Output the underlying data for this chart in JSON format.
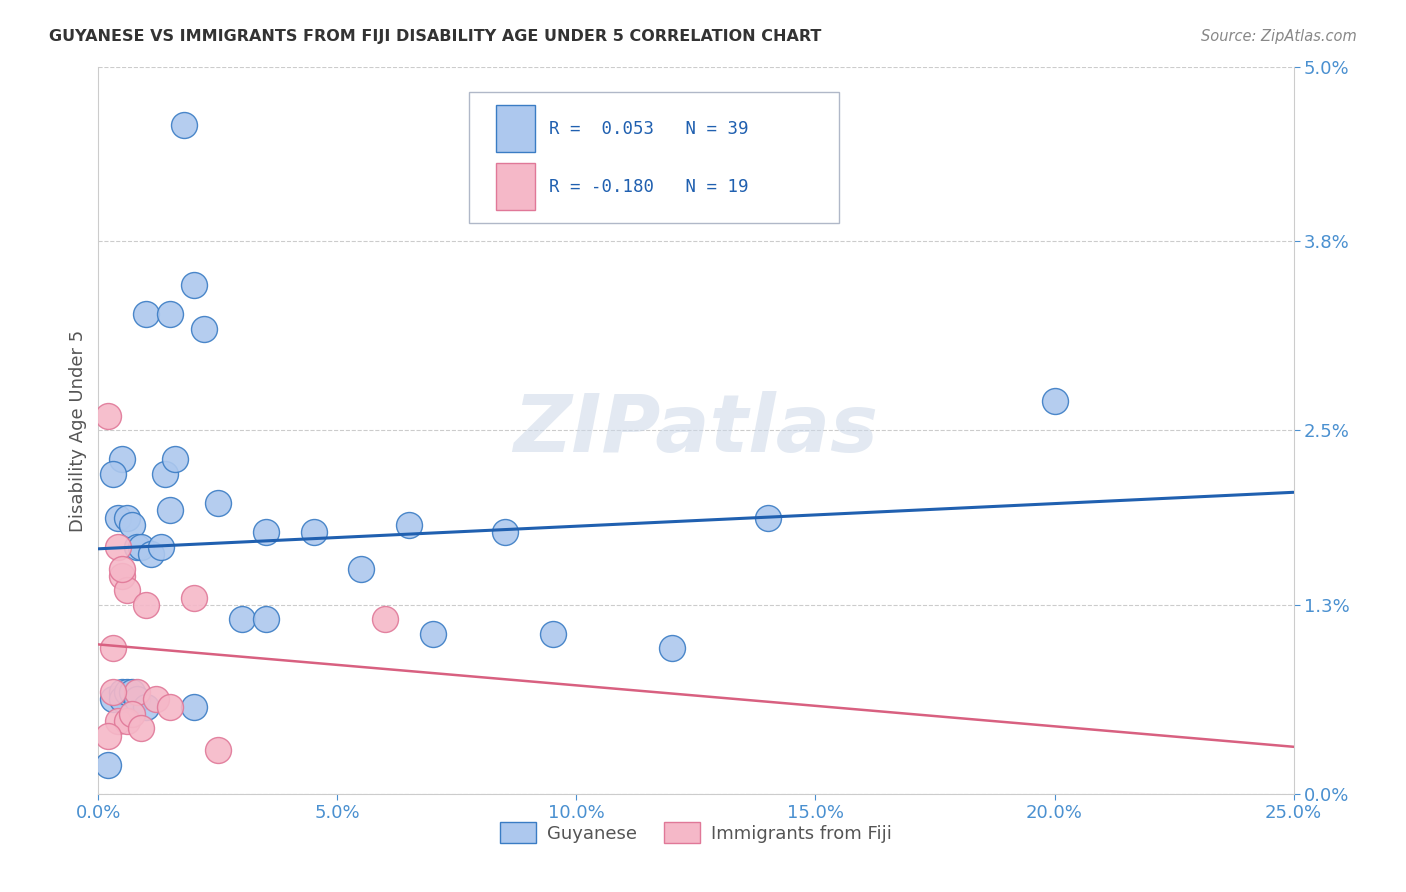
{
  "title": "GUYANESE VS IMMIGRANTS FROM FIJI DISABILITY AGE UNDER 5 CORRELATION CHART",
  "source": "Source: ZipAtlas.com",
  "xlabel_vals": [
    0.0,
    5.0,
    10.0,
    15.0,
    20.0,
    25.0
  ],
  "ylabel_vals": [
    0.0,
    1.3,
    2.5,
    3.8,
    5.0
  ],
  "xlim": [
    0.0,
    25.0
  ],
  "ylim": [
    0.0,
    5.0
  ],
  "ylabel": "Disability Age Under 5",
  "watermark_zip": "ZIP",
  "watermark_atlas": "atlas",
  "guyanese_x": [
    0.5,
    1.0,
    1.5,
    1.8,
    2.0,
    2.2,
    0.3,
    0.4,
    0.6,
    0.7,
    0.8,
    0.9,
    1.1,
    1.3,
    1.4,
    1.6,
    2.5,
    3.5,
    4.5,
    6.5,
    8.5,
    9.5,
    12.0,
    14.0,
    20.0,
    0.2,
    0.3,
    0.5,
    0.5,
    0.6,
    0.7,
    0.8,
    1.0,
    2.0,
    3.0,
    5.5,
    7.0,
    1.5,
    3.5
  ],
  "guyanese_y": [
    2.3,
    3.3,
    3.3,
    4.6,
    3.5,
    3.2,
    2.2,
    1.9,
    1.9,
    1.85,
    1.7,
    1.7,
    1.65,
    1.7,
    2.2,
    2.3,
    2.0,
    1.8,
    1.8,
    1.85,
    1.8,
    1.1,
    1.0,
    1.9,
    2.7,
    0.2,
    0.65,
    0.7,
    0.65,
    0.7,
    0.7,
    0.65,
    0.6,
    0.6,
    1.2,
    1.55,
    1.1,
    1.95,
    1.2
  ],
  "fiji_x": [
    0.2,
    0.4,
    0.5,
    0.6,
    0.8,
    1.0,
    1.2,
    1.5,
    2.0,
    0.3,
    0.4,
    0.6,
    0.7,
    0.9,
    2.5,
    0.2,
    0.3,
    6.0,
    0.5
  ],
  "fiji_y": [
    2.6,
    1.7,
    1.5,
    1.4,
    0.7,
    1.3,
    0.65,
    0.6,
    1.35,
    0.7,
    0.5,
    0.5,
    0.55,
    0.45,
    0.3,
    0.4,
    1.0,
    1.2,
    1.55
  ],
  "blue_fill": "#adc8ee",
  "blue_edge": "#3a7cc4",
  "pink_fill": "#f5b8c8",
  "pink_edge": "#e07898",
  "blue_line": "#2060b0",
  "pink_line": "#d86080",
  "grid_color": "#cccccc",
  "spine_color": "#cccccc",
  "tick_color": "#4a90d0",
  "ylabel_color": "#555555",
  "title_color": "#333333",
  "source_color": "#888888",
  "legend_label1": "Guyanese",
  "legend_label2": "Immigrants from Fiji"
}
